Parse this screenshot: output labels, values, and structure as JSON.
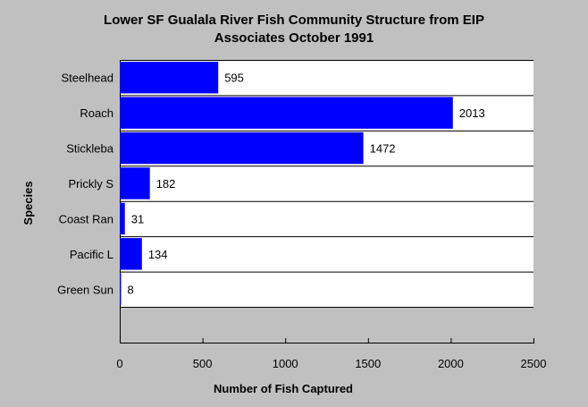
{
  "chart_data": {
    "type": "bar",
    "orientation": "horizontal",
    "title": "Lower SF Gualala River Fish Community Structure from EIP",
    "subtitle": "Associates October 1991",
    "xlabel": "Number of Fish Captured",
    "ylabel": "Species",
    "categories": [
      "Steelhead",
      "Roach",
      "Stickleba",
      "Prickly S",
      "Coast Ran",
      "Pacific L",
      "Green Sun"
    ],
    "values": [
      595,
      2013,
      1472,
      182,
      31,
      134,
      8
    ],
    "xlim": [
      0,
      2500
    ],
    "xticks": [
      "0",
      "500",
      "1000",
      "1500",
      "2000",
      "2500"
    ],
    "grid": false,
    "legend": "none",
    "colors": {
      "background": "#c0c0c0",
      "plot_background": "#ffffff",
      "bar": "#0000ff"
    }
  }
}
